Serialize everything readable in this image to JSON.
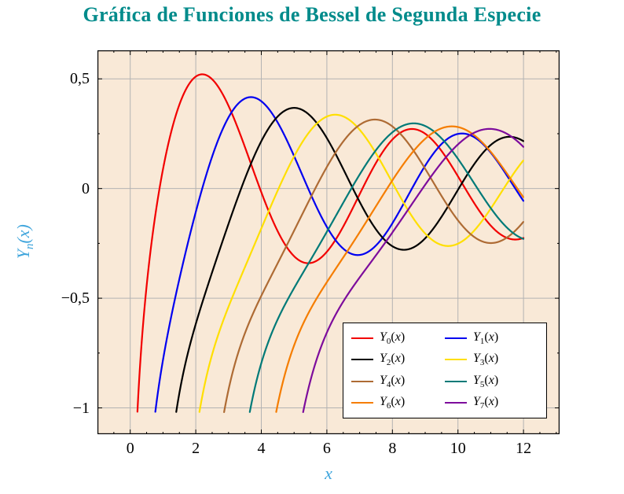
{
  "title": {
    "text": "Gráfica de Funciones de Bessel de Segunda Especie",
    "color": "#008b8b"
  },
  "chart_data": {
    "type": "line",
    "title": "Gráfica de Funciones de Bessel de Segunda Especie",
    "xlabel": "x",
    "ylabel": {
      "base": "Y",
      "sub": "n",
      "arg": "x"
    },
    "axis_label_color": "#3fa5dc",
    "plot_bg": "#f9e9d7",
    "grid": true,
    "grid_color": "#b3b3b3",
    "xlim": [
      -1.0,
      13.1
    ],
    "ylim": [
      -1.12,
      0.63
    ],
    "x_end": 12,
    "curve_start_y": -1.02,
    "x_minor_step": 0.5,
    "y_minor_step": 0.25,
    "legend_position": "bottom-right",
    "x_ticks": [
      {
        "v": 0,
        "label": "0"
      },
      {
        "v": 2,
        "label": "2"
      },
      {
        "v": 4,
        "label": "4"
      },
      {
        "v": 6,
        "label": "6"
      },
      {
        "v": 8,
        "label": "8"
      },
      {
        "v": 10,
        "label": "10"
      },
      {
        "v": 12,
        "label": "12"
      }
    ],
    "y_ticks": [
      {
        "v": 0.5,
        "label": "0,5"
      },
      {
        "v": 0,
        "label": "0"
      },
      {
        "v": -0.5,
        "label": "−0,5"
      },
      {
        "v": -1,
        "label": "−1"
      }
    ],
    "series": [
      {
        "n": 0,
        "name": "Y0(x)",
        "label": {
          "base": "Y",
          "sub": "0",
          "arg": "x"
        },
        "color": "#f20000",
        "samples": [
          [
            0.22,
            -1.0
          ],
          [
            1,
            0.088
          ],
          [
            2,
            0.51
          ],
          [
            3,
            0.377
          ],
          [
            4,
            -0.017
          ],
          [
            5,
            -0.309
          ],
          [
            6,
            -0.288
          ],
          [
            7,
            -0.026
          ],
          [
            8,
            0.224
          ],
          [
            9,
            0.25
          ],
          [
            10,
            0.056
          ],
          [
            11,
            -0.169
          ],
          [
            12,
            -0.225
          ]
        ]
      },
      {
        "n": 1,
        "name": "Y1(x)",
        "label": {
          "base": "Y",
          "sub": "1",
          "arg": "x"
        },
        "color": "#0000f0",
        "samples": [
          [
            0.77,
            -1.0
          ],
          [
            1,
            -0.781
          ],
          [
            2,
            -0.107
          ],
          [
            3,
            0.325
          ],
          [
            4,
            0.398
          ],
          [
            5,
            0.148
          ],
          [
            6,
            -0.175
          ],
          [
            7,
            -0.303
          ],
          [
            8,
            -0.158
          ],
          [
            9,
            0.104
          ],
          [
            10,
            0.249
          ],
          [
            11,
            0.164
          ],
          [
            12,
            -0.057
          ]
        ]
      },
      {
        "n": 2,
        "name": "Y2(x)",
        "label": {
          "base": "Y",
          "sub": "2",
          "arg": "x"
        },
        "color": "#000000",
        "samples": [
          [
            1.43,
            -1.0
          ],
          [
            2,
            -0.617
          ],
          [
            3,
            -0.16
          ],
          [
            4,
            0.216
          ],
          [
            5,
            0.368
          ],
          [
            6,
            0.23
          ],
          [
            7,
            -0.061
          ],
          [
            8,
            -0.263
          ],
          [
            9,
            -0.227
          ],
          [
            10,
            -0.006
          ],
          [
            11,
            0.199
          ],
          [
            12,
            0.216
          ]
        ]
      },
      {
        "n": 3,
        "name": "Y3(x)",
        "label": {
          "base": "Y",
          "sub": "3",
          "arg": "x"
        },
        "color": "#ffdf00",
        "samples": [
          [
            2.13,
            -1.0
          ],
          [
            3,
            -0.539
          ],
          [
            4,
            -0.182
          ],
          [
            5,
            0.146
          ],
          [
            6,
            0.328
          ],
          [
            7,
            0.268
          ],
          [
            8,
            0.027
          ],
          [
            9,
            -0.205
          ],
          [
            10,
            -0.251
          ],
          [
            11,
            -0.091
          ],
          [
            12,
            0.129
          ]
        ]
      },
      {
        "n": 4,
        "name": "Y4(x)",
        "label": {
          "base": "Y",
          "sub": "4",
          "arg": "x"
        },
        "color": "#ae6b34",
        "samples": [
          [
            2.9,
            -1.0
          ],
          [
            3,
            -0.917
          ],
          [
            4,
            -0.489
          ],
          [
            5,
            -0.192
          ],
          [
            6,
            0.098
          ],
          [
            7,
            0.29
          ],
          [
            8,
            0.283
          ],
          [
            9,
            0.09
          ],
          [
            10,
            -0.145
          ],
          [
            11,
            -0.249
          ],
          [
            12,
            -0.151
          ]
        ]
      },
      {
        "n": 5,
        "name": "Y5(x)",
        "label": {
          "base": "Y",
          "sub": "5",
          "arg": "x"
        },
        "color": "#007a78",
        "samples": [
          [
            3.63,
            -1.0
          ],
          [
            4,
            -0.796
          ],
          [
            5,
            -0.454
          ],
          [
            6,
            -0.197
          ],
          [
            7,
            0.064
          ],
          [
            8,
            0.256
          ],
          [
            9,
            0.285
          ],
          [
            10,
            0.135
          ],
          [
            11,
            -0.089
          ],
          [
            12,
            -0.23
          ]
        ]
      },
      {
        "n": 6,
        "name": "Y6(x)",
        "label": {
          "base": "Y",
          "sub": "6",
          "arg": "x"
        },
        "color": "#f57d00",
        "samples": [
          [
            4.33,
            -1.0
          ],
          [
            5,
            -0.715
          ],
          [
            6,
            -0.427
          ],
          [
            7,
            -0.199
          ],
          [
            8,
            0.038
          ],
          [
            9,
            0.227
          ],
          [
            10,
            0.28
          ],
          [
            11,
            0.167
          ],
          [
            12,
            -0.04
          ]
        ]
      },
      {
        "n": 7,
        "name": "Y7(x)",
        "label": {
          "base": "Y",
          "sub": "7",
          "arg": "x"
        },
        "color": "#7d0c9c",
        "samples": [
          [
            5.33,
            -1.0
          ],
          [
            6,
            -0.657
          ],
          [
            7,
            -0.405
          ],
          [
            8,
            -0.2
          ],
          [
            9,
            0.017
          ],
          [
            10,
            0.201
          ],
          [
            11,
            0.272
          ],
          [
            12,
            0.19
          ]
        ]
      }
    ]
  }
}
